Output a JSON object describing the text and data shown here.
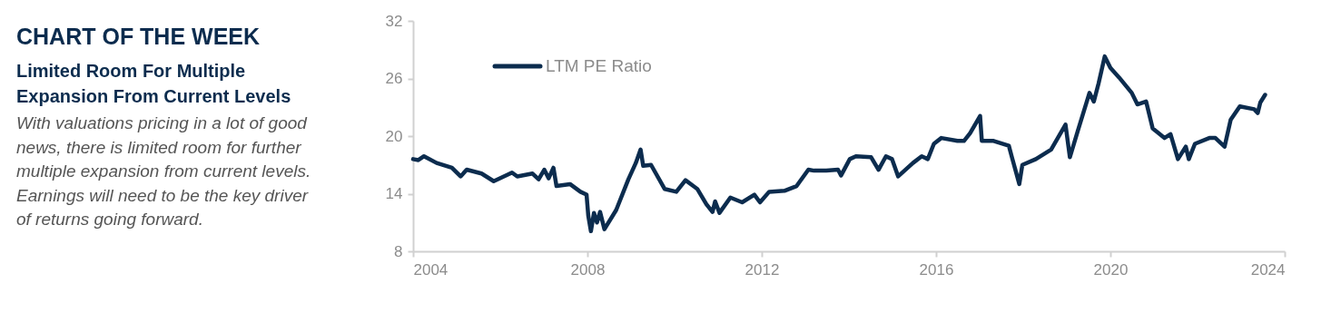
{
  "chart_data": {
    "type": "line",
    "title": "CHART OF THE WEEK",
    "subtitle": "Limited Room For Multiple Expansion From Current Levels",
    "annotations": [
      "With valuations pricing in a lot of good news, there is limited room for further multiple expansion from current levels. Earnings will need to be the key driver of returns going forward."
    ],
    "x": [
      2004.0,
      2004.12,
      2004.25,
      2004.54,
      2004.89,
      2005.09,
      2005.23,
      2005.57,
      2005.85,
      2006.27,
      2006.39,
      2006.74,
      2006.88,
      2007.01,
      2007.11,
      2007.22,
      2007.29,
      2007.6,
      2007.84,
      2007.98,
      2008.02,
      2008.08,
      2008.15,
      2008.22,
      2008.29,
      2008.39,
      2008.66,
      2008.94,
      2009.11,
      2009.22,
      2009.28,
      2009.46,
      2009.77,
      2010.04,
      2010.25,
      2010.52,
      2010.73,
      2010.87,
      2010.93,
      2011.03,
      2011.28,
      2011.55,
      2011.83,
      2011.96,
      2012.17,
      2012.52,
      2012.8,
      2013.07,
      2013.2,
      2013.48,
      2013.75,
      2013.82,
      2014.02,
      2014.16,
      2014.51,
      2014.68,
      2014.85,
      2014.99,
      2015.13,
      2015.47,
      2015.67,
      2015.81,
      2015.95,
      2016.12,
      2016.49,
      2016.64,
      2016.78,
      2017.01,
      2017.05,
      2017.32,
      2017.67,
      2017.74,
      2017.91,
      2017.98,
      2018.29,
      2018.64,
      2018.97,
      2019.07,
      2019.25,
      2019.52,
      2019.62,
      2019.73,
      2019.87,
      2020.0,
      2020.2,
      2020.49,
      2020.62,
      2020.82,
      2020.97,
      2021.24,
      2021.38,
      2021.55,
      2021.73,
      2021.8,
      2021.94,
      2022.27,
      2022.41,
      2022.62,
      2022.76,
      2022.97,
      2023.3,
      2023.38,
      2023.44,
      2023.55
    ],
    "series": [
      {
        "name": "LTM PE Ratio",
        "color": "#0c2c4e",
        "values": [
          17.6,
          17.5,
          17.9,
          17.2,
          16.7,
          15.8,
          16.5,
          16.1,
          15.3,
          16.2,
          15.8,
          16.1,
          15.5,
          16.5,
          15.6,
          16.7,
          14.8,
          15.0,
          14.2,
          13.9,
          11.7,
          10.1,
          12.0,
          11.0,
          12.1,
          10.3,
          12.3,
          15.5,
          17.2,
          18.6,
          16.9,
          17.0,
          14.5,
          14.2,
          15.4,
          14.5,
          12.9,
          12.1,
          13.2,
          12.0,
          13.6,
          13.1,
          13.9,
          13.1,
          14.2,
          14.3,
          14.8,
          16.5,
          16.4,
          16.4,
          16.5,
          15.9,
          17.6,
          17.9,
          17.8,
          16.5,
          17.9,
          17.6,
          15.8,
          17.2,
          17.9,
          17.6,
          19.2,
          19.8,
          19.5,
          19.5,
          20.3,
          22.1,
          19.5,
          19.5,
          19.0,
          17.8,
          15.0,
          17.0,
          17.6,
          18.6,
          21.2,
          17.8,
          20.5,
          24.5,
          23.6,
          25.5,
          28.3,
          27.1,
          26.1,
          24.5,
          23.3,
          23.6,
          20.8,
          19.8,
          20.2,
          17.6,
          18.9,
          17.6,
          19.2,
          19.8,
          19.8,
          18.9,
          21.7,
          23.1,
          22.8,
          22.4,
          23.5,
          24.3
        ]
      }
    ],
    "xlim": [
      2004,
      2024
    ],
    "xticks": [
      2004,
      2008,
      2012,
      2016,
      2020,
      2024
    ],
    "ylim": [
      8,
      32
    ],
    "yticks": [
      8,
      14,
      20,
      26,
      32
    ],
    "grid": false,
    "legend": "top left",
    "marker": "none",
    "line_style": "solid"
  }
}
